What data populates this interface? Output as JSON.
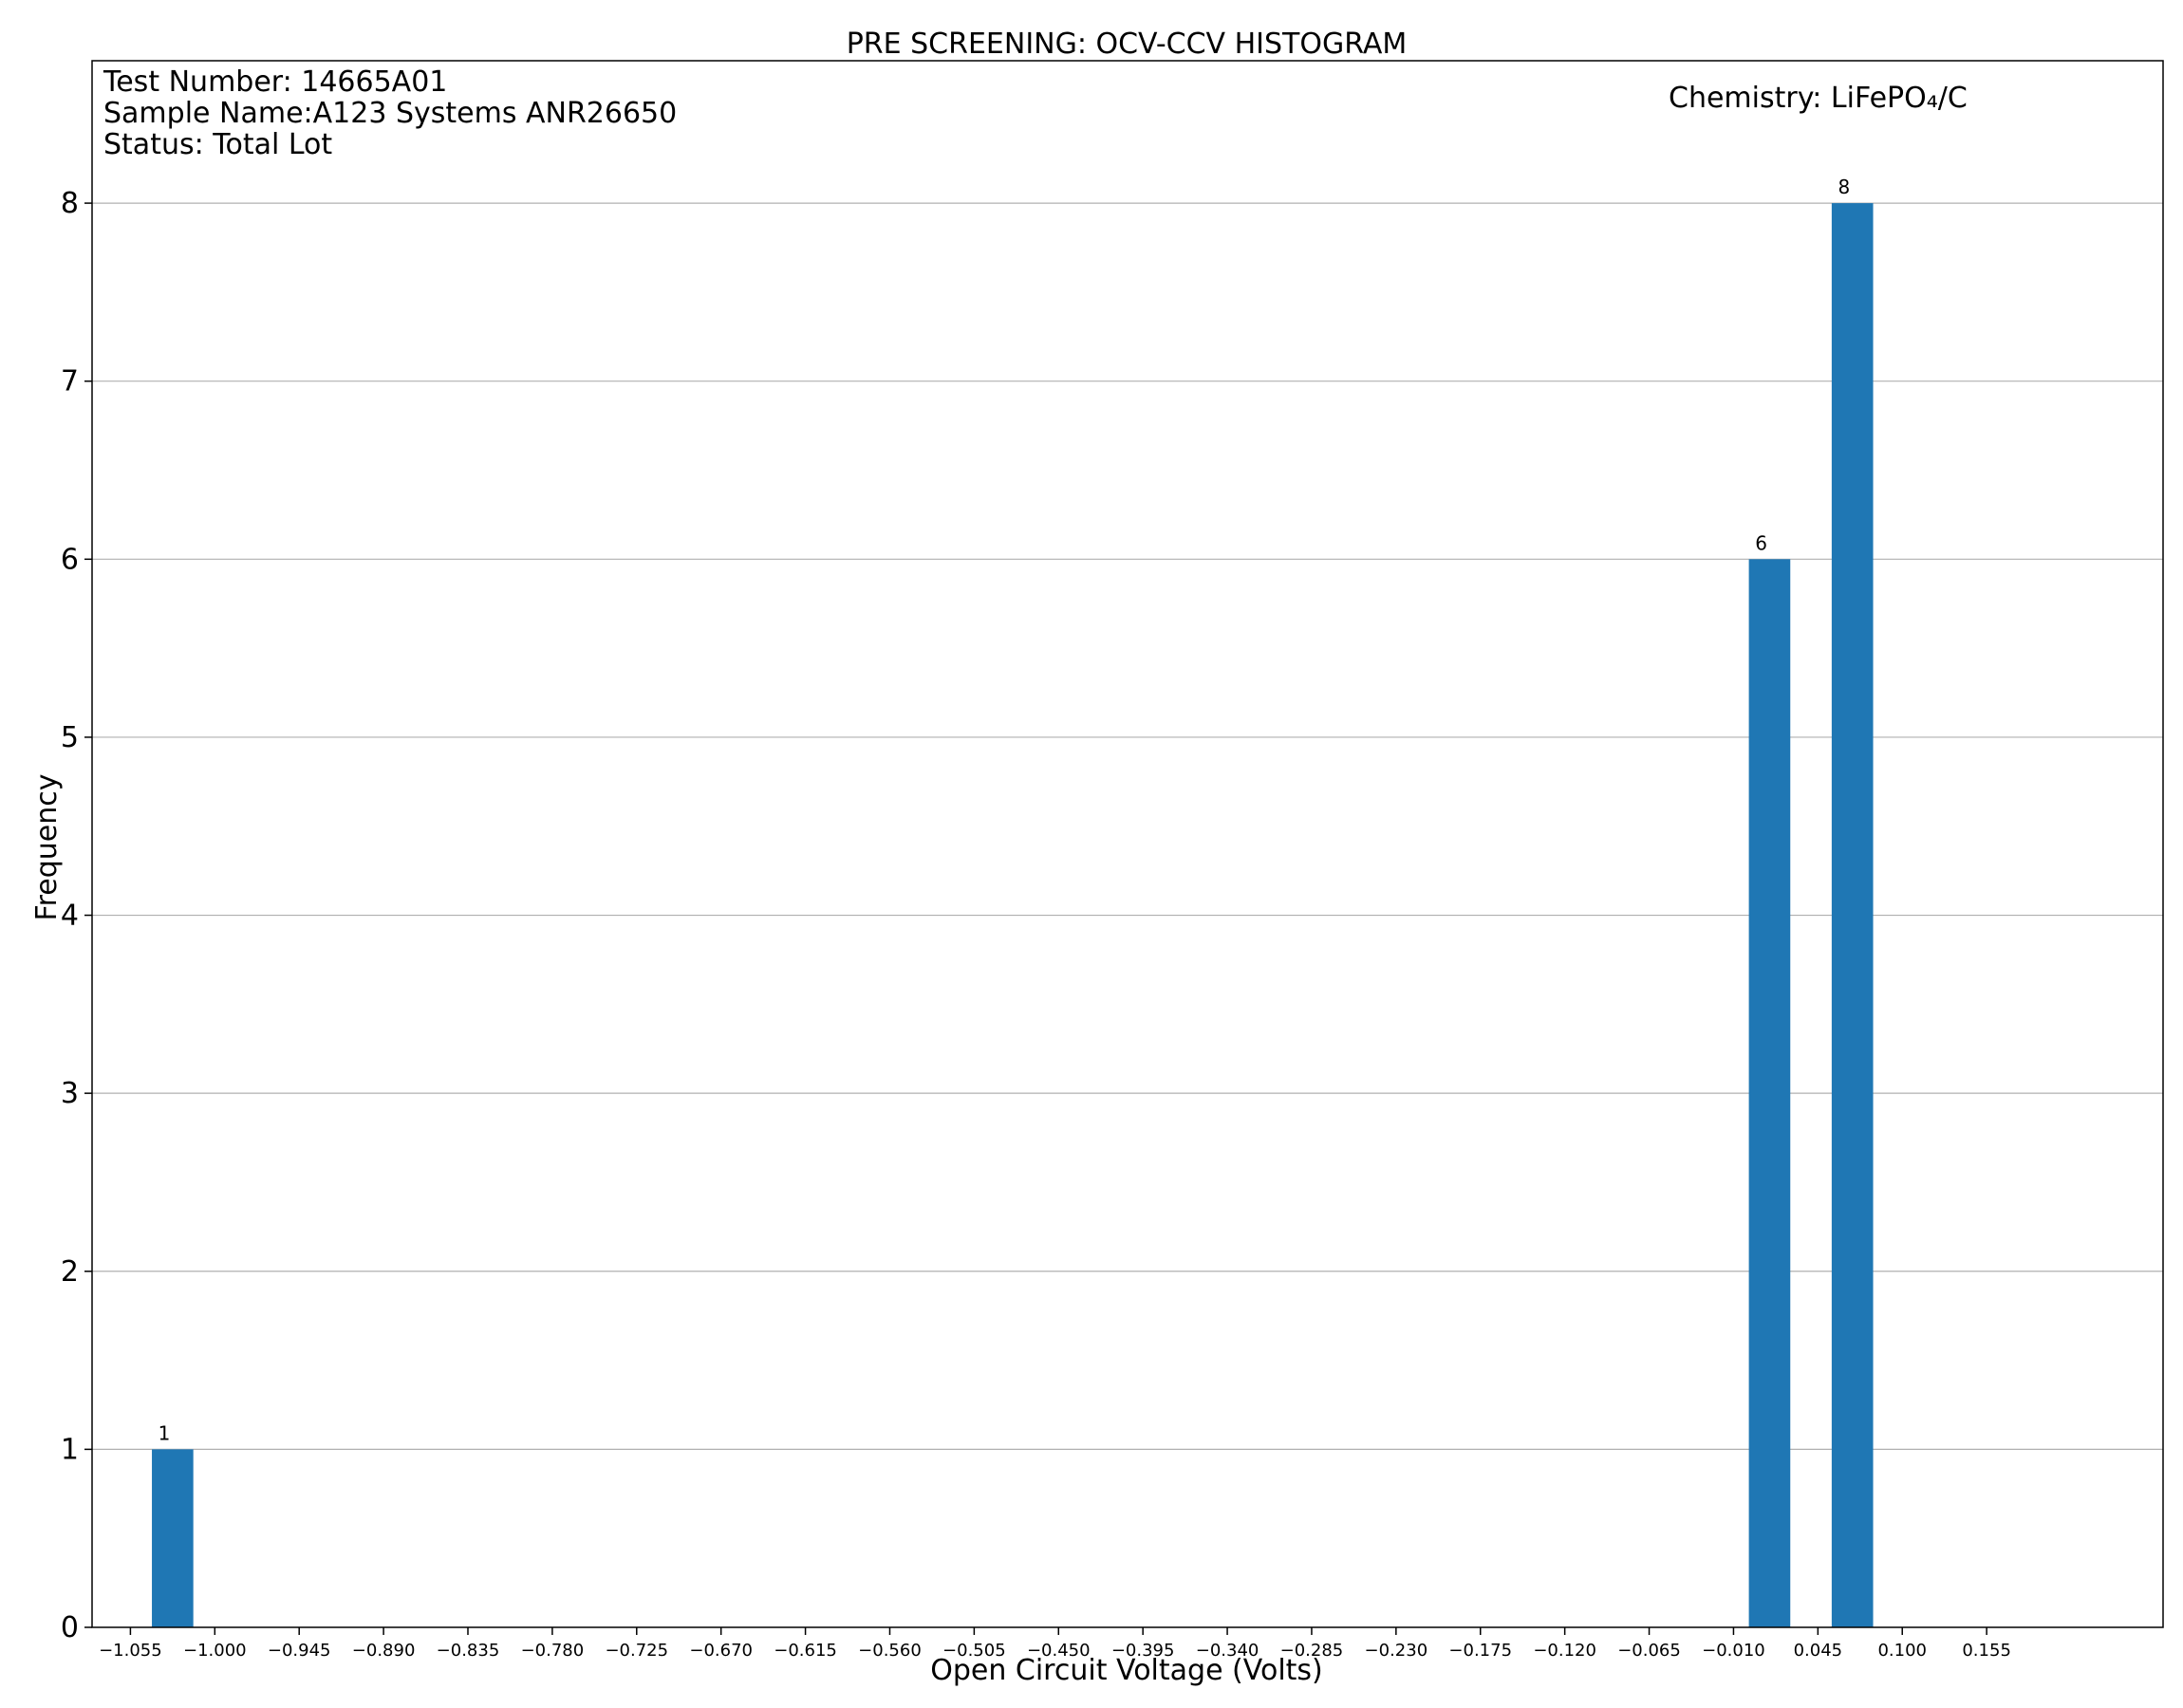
{
  "chart_data": {
    "type": "bar",
    "title": "PRE SCREENING: OCV-CCV HISTOGRAM",
    "xlabel": "Open Circuit Voltage (Volts)",
    "ylabel": "Frequency",
    "info_lines": [
      "Test Number: 14665A01",
      "Sample Name:A123 Systems ANR26650",
      "Status: Total Lot"
    ],
    "chemistry_label": "Chemistry: LiFePO₄/C",
    "x_ticks": [
      -1.055,
      -1.0,
      -0.945,
      -0.89,
      -0.835,
      -0.78,
      -0.725,
      -0.67,
      -0.615,
      -0.56,
      -0.505,
      -0.45,
      -0.395,
      -0.34,
      -0.285,
      -0.23,
      -0.175,
      -0.12,
      -0.065,
      -0.01,
      0.045,
      0.1,
      0.155
    ],
    "x_tick_labels": [
      "−1.055",
      "−1.000",
      "−0.945",
      "−0.890",
      "−0.835",
      "−0.780",
      "−0.725",
      "−0.670",
      "−0.615",
      "−0.560",
      "−0.505",
      "−0.450",
      "−0.395",
      "−0.340",
      "−0.285",
      "−0.230",
      "−0.175",
      "−0.120",
      "−0.065",
      "−0.010",
      "0.045",
      "0.100",
      "0.155"
    ],
    "y_ticks": [
      0,
      1,
      2,
      3,
      4,
      5,
      6,
      7,
      8
    ],
    "y_tick_labels": [
      "0",
      "1",
      "2",
      "3",
      "4",
      "5",
      "6",
      "7",
      "8"
    ],
    "xlim": [
      -1.08,
      0.27
    ],
    "ylim": [
      0,
      8.8
    ],
    "bars": [
      {
        "x_start": -1.041,
        "x_end": -1.014,
        "value": 1,
        "label": "1"
      },
      {
        "x_start": 0.0,
        "x_end": 0.027,
        "value": 6,
        "label": "6"
      },
      {
        "x_start": 0.054,
        "x_end": 0.081,
        "value": 8,
        "label": "8"
      }
    ],
    "bar_color": "#1f77b4",
    "grid": "horizontal"
  }
}
